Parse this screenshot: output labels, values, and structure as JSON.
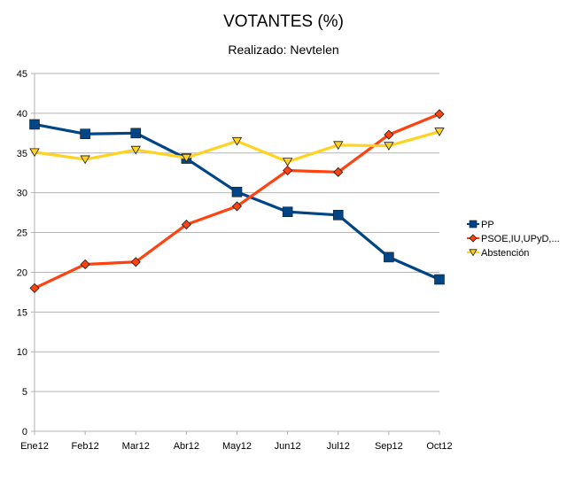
{
  "chart_data": {
    "type": "line",
    "title": "VOTANTES (%)",
    "subtitle": "Realizado: Nevtelen",
    "xlabel": "",
    "ylabel": "",
    "categories": [
      "Ene12",
      "Feb12",
      "Mar12",
      "Abr12",
      "May12",
      "Jun12",
      "Jul12",
      "Sep12",
      "Oct12"
    ],
    "ylim": [
      0,
      45
    ],
    "yticks": [
      0,
      5,
      10,
      15,
      20,
      25,
      30,
      35,
      40,
      45
    ],
    "grid": true,
    "legend_position": "right",
    "series": [
      {
        "name": "PP",
        "color": "#004586",
        "marker": "square",
        "values": [
          38.6,
          37.4,
          37.5,
          34.3,
          30.1,
          27.6,
          27.2,
          21.9,
          19.1
        ]
      },
      {
        "name": "PSOE,IU,UPyD,...",
        "color": "#ff420e",
        "marker": "diamond",
        "values": [
          18.0,
          21.0,
          21.3,
          26.0,
          28.3,
          32.8,
          32.6,
          37.3,
          39.9
        ]
      },
      {
        "name": "Abstención",
        "color": "#ffd320",
        "marker": "triangle-down",
        "values": [
          35.1,
          34.2,
          35.4,
          34.4,
          36.5,
          33.9,
          36.0,
          35.9,
          37.7
        ]
      }
    ]
  }
}
